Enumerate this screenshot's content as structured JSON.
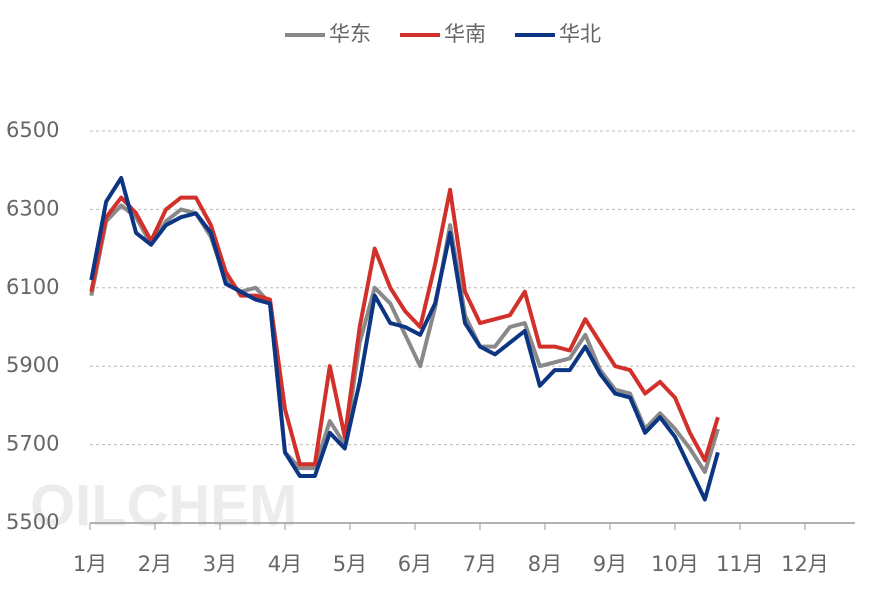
{
  "chart_data": {
    "type": "line",
    "watermark": "OILCHEM",
    "x": [
      1.02,
      1.25,
      1.48,
      1.71,
      1.94,
      2.17,
      2.4,
      2.63,
      2.86,
      3.09,
      3.32,
      3.55,
      3.77,
      4.0,
      4.23,
      4.46,
      4.69,
      4.92,
      5.15,
      5.38,
      5.62,
      5.85,
      6.08,
      6.31,
      6.54,
      6.77,
      7.0,
      7.23,
      7.46,
      7.69,
      7.92,
      8.15,
      8.38,
      8.62,
      8.85,
      9.08,
      9.31,
      9.54,
      9.77,
      10.0,
      10.23,
      10.46,
      10.66
    ],
    "series": [
      {
        "name": "华东",
        "color": "#898989",
        "values": [
          6080,
          6270,
          6310,
          6280,
          6210,
          6270,
          6300,
          6290,
          6230,
          6120,
          6090,
          6100,
          6060,
          5680,
          5640,
          5640,
          5760,
          5700,
          5960,
          6100,
          6060,
          5980,
          5900,
          6050,
          6260,
          6030,
          5950,
          5950,
          6000,
          6010,
          5900,
          5910,
          5920,
          5980,
          5890,
          5840,
          5830,
          5740,
          5780,
          5740,
          5690,
          5630,
          5740
        ]
      },
      {
        "name": "华南",
        "color": "#d2302a",
        "values": [
          6090,
          6280,
          6330,
          6290,
          6220,
          6300,
          6330,
          6330,
          6260,
          6140,
          6080,
          6080,
          6070,
          5790,
          5650,
          5650,
          5900,
          5720,
          6000,
          6200,
          6100,
          6040,
          6000,
          6160,
          6350,
          6090,
          6010,
          6020,
          6030,
          6090,
          5950,
          5950,
          5940,
          6020,
          5960,
          5900,
          5890,
          5830,
          5860,
          5820,
          5730,
          5660,
          5770
        ]
      },
      {
        "name": "华北",
        "color": "#0c3583",
        "values": [
          6120,
          6320,
          6380,
          6240,
          6210,
          6260,
          6280,
          6290,
          6240,
          6110,
          6090,
          6070,
          6060,
          5680,
          5620,
          5620,
          5730,
          5690,
          5860,
          6080,
          6010,
          6000,
          5980,
          6060,
          6240,
          6010,
          5950,
          5930,
          5960,
          5990,
          5850,
          5890,
          5890,
          5950,
          5880,
          5830,
          5820,
          5730,
          5770,
          5720,
          5640,
          5560,
          5680
        ]
      }
    ],
    "xlim": [
      1,
      12.77
    ],
    "xticks": [
      {
        "value": 1,
        "label": "1月"
      },
      {
        "value": 2,
        "label": "2月"
      },
      {
        "value": 3,
        "label": "3月"
      },
      {
        "value": 4,
        "label": "4月"
      },
      {
        "value": 5,
        "label": "5月"
      },
      {
        "value": 6,
        "label": "6月"
      },
      {
        "value": 7,
        "label": "7月"
      },
      {
        "value": 8,
        "label": "8月"
      },
      {
        "value": 9,
        "label": "9月"
      },
      {
        "value": 10,
        "label": "10月"
      },
      {
        "value": 11,
        "label": "11月"
      },
      {
        "value": 12,
        "label": "12月"
      }
    ],
    "ylim": [
      5500,
      6500
    ],
    "yticks": [
      5500,
      5700,
      5900,
      6100,
      6300,
      6500
    ],
    "grid": true
  }
}
